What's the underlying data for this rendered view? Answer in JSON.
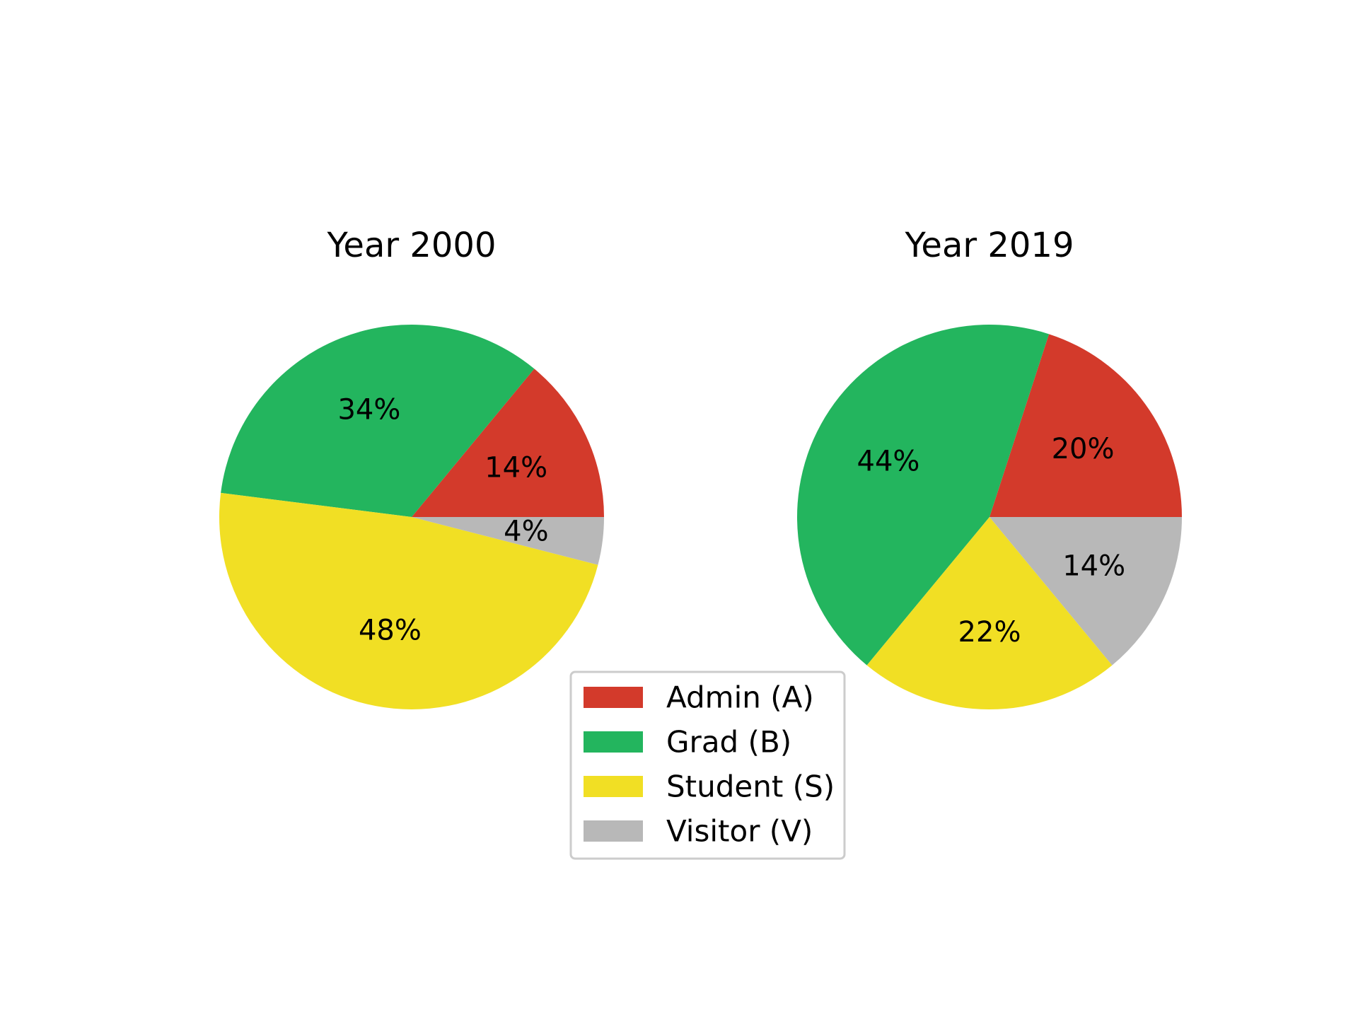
{
  "chart_data": [
    {
      "type": "pie",
      "title": "Year 2000",
      "categories": [
        "Admin (A)",
        "Grad (B)",
        "Student (S)",
        "Visitor (V)"
      ],
      "values": [
        14,
        34,
        48,
        4
      ],
      "labels": [
        "14%",
        "34%",
        "48%",
        "4%"
      ]
    },
    {
      "type": "pie",
      "title": "Year 2019",
      "categories": [
        "Admin (A)",
        "Grad (B)",
        "Student (S)",
        "Visitor (V)"
      ],
      "values": [
        20,
        44,
        22,
        14
      ],
      "labels": [
        "20%",
        "44%",
        "22%",
        "14%"
      ]
    }
  ],
  "legend": {
    "placement": "bottom-center",
    "items": [
      {
        "label": "Admin (A)",
        "color": "#d33a2b"
      },
      {
        "label": "Grad (B)",
        "color": "#23b55e"
      },
      {
        "label": "Student (S)",
        "color": "#f1df24"
      },
      {
        "label": "Visitor (V)",
        "color": "#b8b8b8"
      }
    ]
  },
  "colors": [
    "#d33a2b",
    "#23b55e",
    "#f1df24",
    "#b8b8b8"
  ]
}
